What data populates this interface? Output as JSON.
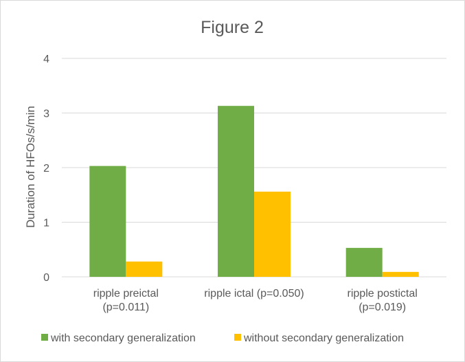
{
  "chart_data": {
    "type": "bar",
    "title": "Figure 2",
    "xlabel": "",
    "ylabel": "Duration of HFOs/s/min",
    "ylim": [
      0,
      4
    ],
    "yticks": [
      "0",
      "1",
      "2",
      "3",
      "4"
    ],
    "grid": true,
    "legend_position": "bottom",
    "categories": [
      [
        "ripple preictal",
        "(p=0.011)"
      ],
      [
        "ripple ictal (p=0.050)"
      ],
      [
        "ripple postictal",
        "(p=0.019)"
      ]
    ],
    "series": [
      {
        "name": "with secondary generalization",
        "color": "#70ad47",
        "values": [
          2.03,
          3.13,
          0.53
        ]
      },
      {
        "name": "without secondary generalization",
        "color": "#ffc000",
        "values": [
          0.28,
          1.56,
          0.09
        ]
      }
    ]
  }
}
